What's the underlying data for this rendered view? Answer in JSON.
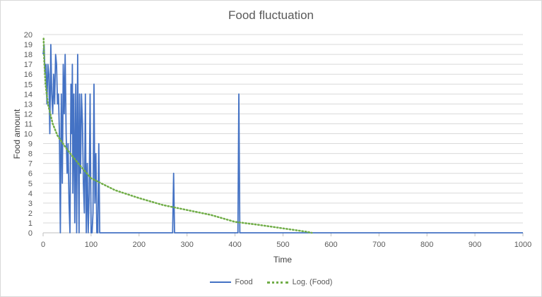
{
  "chart_data": {
    "type": "line",
    "title": "Food fluctuation",
    "xlabel": "Time",
    "ylabel": "Food amount",
    "xlim": [
      0,
      1000
    ],
    "ylim": [
      0,
      20
    ],
    "x_ticks": [
      "0",
      "100",
      "200",
      "300",
      "400",
      "500",
      "600",
      "700",
      "800",
      "900",
      "1000"
    ],
    "y_ticks": [
      "0",
      "1",
      "2",
      "3",
      "4",
      "5",
      "6",
      "7",
      "8",
      "9",
      "10",
      "11",
      "12",
      "13",
      "14",
      "15",
      "16",
      "17",
      "18",
      "19",
      "20"
    ],
    "grid": "horizontal",
    "legend_position": "bottom",
    "series": [
      {
        "name": "Food",
        "color": "#4472c4",
        "style": "solid",
        "x": [
          0,
          2,
          4,
          6,
          8,
          10,
          12,
          14,
          16,
          18,
          20,
          22,
          24,
          26,
          28,
          30,
          32,
          34,
          36,
          38,
          40,
          41,
          42,
          44,
          46,
          48,
          50,
          52,
          54,
          56,
          58,
          60,
          61,
          62,
          64,
          66,
          68,
          70,
          72,
          74,
          75,
          76,
          78,
          80,
          82,
          84,
          86,
          88,
          90,
          92,
          94,
          96,
          98,
          100,
          102,
          104,
          106,
          108,
          110,
          112,
          114,
          116,
          118,
          120,
          122,
          124,
          126,
          128,
          130,
          270,
          272,
          274,
          276,
          406,
          408,
          410,
          412,
          1000
        ],
        "y": [
          18,
          19,
          16,
          17,
          13,
          17,
          16,
          10,
          19,
          14,
          12,
          16,
          13,
          18,
          17,
          13,
          14,
          10,
          0,
          14,
          5,
          10,
          17,
          12,
          18,
          10,
          6,
          9,
          3,
          0,
          15,
          10,
          17,
          4,
          14,
          1,
          15,
          0,
          18,
          5,
          0,
          14,
          6,
          14,
          11,
          5,
          2,
          14,
          0,
          7,
          0,
          4,
          14,
          0,
          0,
          2,
          15,
          3,
          8,
          0,
          0,
          9,
          0,
          0,
          0,
          0,
          0,
          0,
          0,
          0,
          6,
          0,
          0,
          0,
          14,
          0,
          0,
          0
        ]
      },
      {
        "name": "Log. (Food)",
        "color": "#70ad47",
        "style": "dotted",
        "x": [
          1,
          2,
          5,
          10,
          20,
          30,
          50,
          75,
          100,
          150,
          200,
          250,
          300,
          350,
          400,
          450,
          500,
          550,
          560
        ],
        "y": [
          19.6,
          17.6,
          15.0,
          13.0,
          11.0,
          9.8,
          8.4,
          6.9,
          5.5,
          4.3,
          3.5,
          2.8,
          2.3,
          1.8,
          1.1,
          0.8,
          0.45,
          0.1,
          0.0
        ]
      }
    ]
  }
}
